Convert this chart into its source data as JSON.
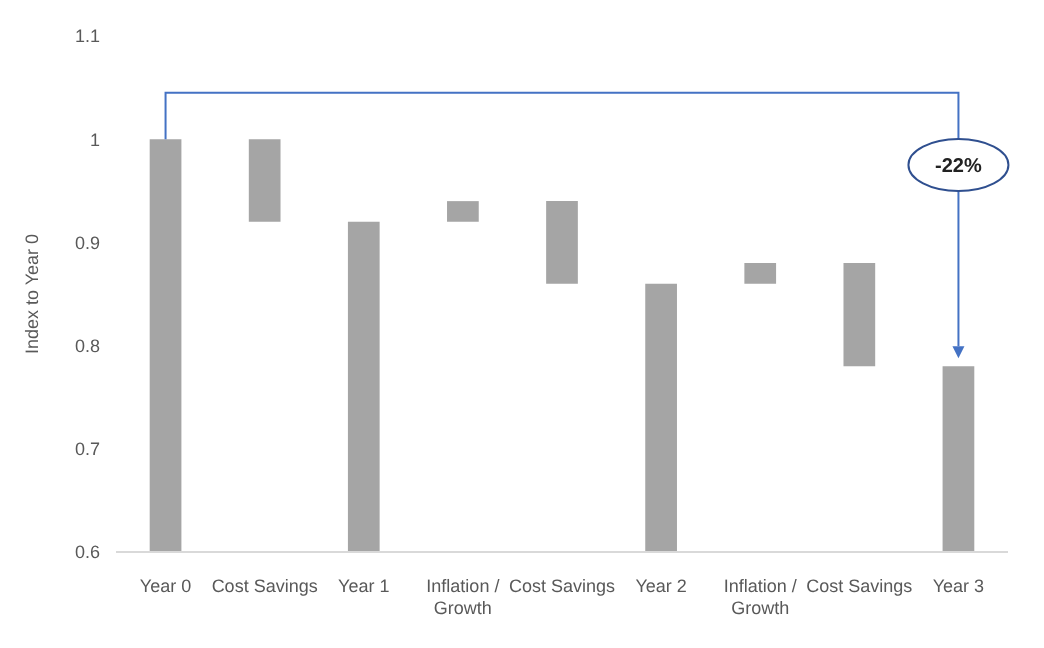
{
  "chart_data": {
    "type": "bar",
    "ylabel": "Index to Year 0",
    "categories": [
      "Year 0",
      "Cost Savings",
      "Year 1",
      "Inflation / Growth",
      "Cost Savings",
      "Year 2",
      "Inflation / Growth",
      "Cost Savings",
      "Year 3"
    ],
    "values": [
      1.0,
      -0.08,
      0.92,
      0.02,
      -0.08,
      0.86,
      0.02,
      -0.1,
      0.78
    ],
    "base": [
      null,
      1.0,
      null,
      0.92,
      0.94,
      null,
      0.86,
      0.88,
      null
    ],
    "color": "#a5a5a5",
    "ylim": [
      0.6,
      1.1
    ],
    "yticks": [
      0.6,
      0.7,
      0.8,
      0.9,
      1,
      1.1
    ],
    "annotations": [
      "-22%"
    ]
  }
}
